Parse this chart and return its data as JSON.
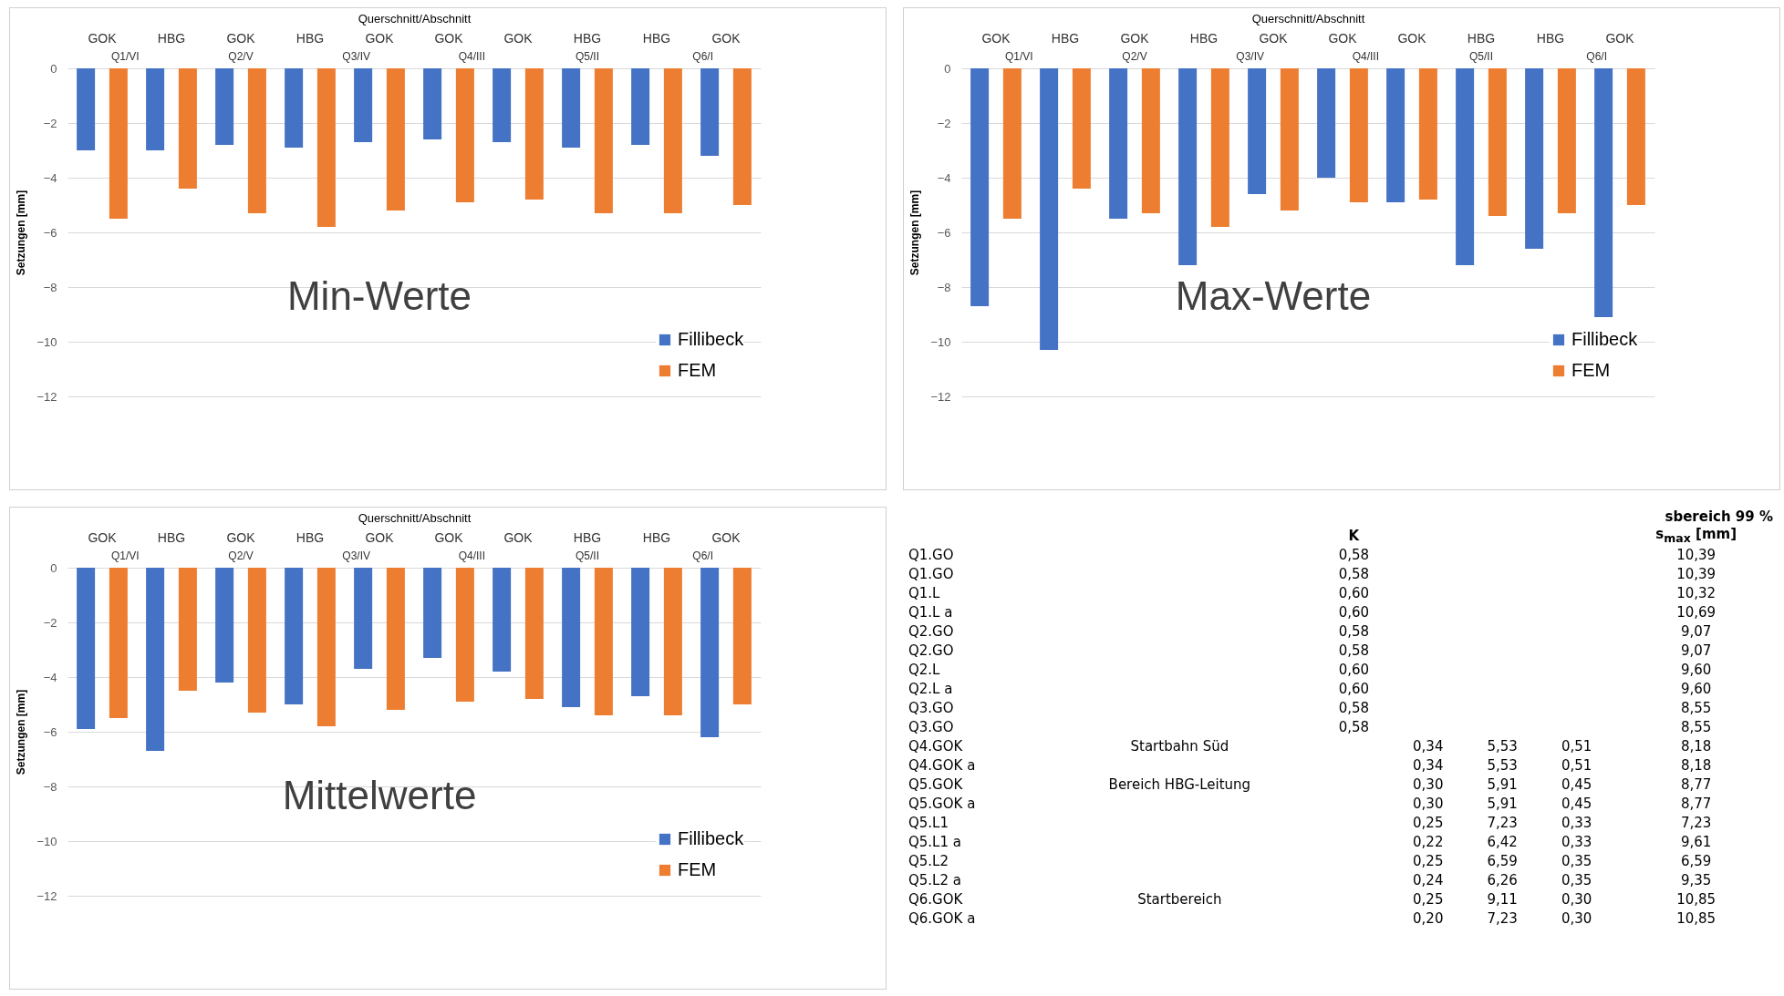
{
  "chart_data": [
    {
      "type": "bar",
      "title": "Min-Werte",
      "xlabel": "Querschnitt/Abschnitt",
      "ylabel": "Setzungen [mm]",
      "categories": [
        "GOK",
        "HBG",
        "GOK",
        "HBG",
        "GOK",
        "GOK",
        "GOK",
        "HBG",
        "HBG",
        "GOK"
      ],
      "annotations": [
        "Q1/VI",
        "Q2/V",
        "Q3/IV",
        "Q4/III",
        "Q5/II",
        "Q6/I"
      ],
      "series": [
        {
          "name": "Fillibeck",
          "color": "#4472c4",
          "values": [
            -3.0,
            -3.0,
            -2.8,
            -2.9,
            -2.7,
            -2.6,
            -2.7,
            -2.9,
            -2.8,
            -3.2
          ]
        },
        {
          "name": "FEM",
          "color": "#ed7d31",
          "values": [
            -5.5,
            -4.4,
            -5.3,
            -5.8,
            -5.2,
            -4.9,
            -4.8,
            -5.3,
            -5.3,
            -5.0
          ]
        }
      ],
      "ylim": [
        -12,
        0
      ],
      "yticks": [
        -12,
        -10,
        -8,
        -6,
        -4,
        -2,
        0
      ],
      "grid": "y",
      "legend": "bottom right"
    },
    {
      "type": "bar",
      "title": "Max-Werte",
      "xlabel": "Querschnitt/Abschnitt",
      "ylabel": "Setzungen [mm]",
      "categories": [
        "GOK",
        "HBG",
        "GOK",
        "HBG",
        "GOK",
        "GOK",
        "GOK",
        "HBG",
        "HBG",
        "GOK"
      ],
      "annotations": [
        "Q1/VI",
        "Q2/V",
        "Q3/IV",
        "Q4/III",
        "Q5/II",
        "Q6/I"
      ],
      "series": [
        {
          "name": "Fillibeck",
          "color": "#4472c4",
          "values": [
            -8.7,
            -10.3,
            -5.5,
            -7.2,
            -4.6,
            -4.0,
            -4.9,
            -7.2,
            -6.6,
            -9.1
          ]
        },
        {
          "name": "FEM",
          "color": "#ed7d31",
          "values": [
            -5.5,
            -4.4,
            -5.3,
            -5.8,
            -5.2,
            -4.9,
            -4.8,
            -5.4,
            -5.3,
            -5.0
          ]
        }
      ],
      "ylim": [
        -12,
        0
      ],
      "yticks": [
        -12,
        -10,
        -8,
        -6,
        -4,
        -2,
        0
      ],
      "grid": "y",
      "legend": "bottom right"
    },
    {
      "type": "bar",
      "title": "Mittelwerte",
      "xlabel": "Querschnitt/Abschnitt",
      "ylabel": "Setzungen [mm]",
      "categories": [
        "GOK",
        "HBG",
        "GOK",
        "HBG",
        "GOK",
        "GOK",
        "GOK",
        "HBG",
        "HBG",
        "GOK"
      ],
      "annotations": [
        "Q1/VI",
        "Q2/V",
        "Q3/IV",
        "Q4/III",
        "Q5/II",
        "Q6/I"
      ],
      "series": [
        {
          "name": "Fillibeck",
          "color": "#4472c4",
          "values": [
            -5.9,
            -6.7,
            -4.2,
            -5.0,
            -3.7,
            -3.3,
            -3.8,
            -5.1,
            -4.7,
            -6.2
          ]
        },
        {
          "name": "FEM",
          "color": "#ed7d31",
          "values": [
            -5.5,
            -4.5,
            -5.3,
            -5.8,
            -5.2,
            -4.9,
            -4.8,
            -5.4,
            -5.4,
            -5.0
          ]
        }
      ],
      "ylim": [
        -12,
        0
      ],
      "yticks": [
        -12,
        -10,
        -8,
        -6,
        -4,
        -2,
        0
      ],
      "grid": "y",
      "legend": "bottom right"
    },
    {
      "type": "other",
      "annotations": [
        "sbereich 99 %"
      ],
      "categories": [
        null,
        "K",
        null,
        null,
        null,
        "s$_{max}$ [mm]"
      ],
      "y_categories": [
        "Q1.GO",
        "Q1.GO",
        "Q1.L",
        "Q1.L a",
        "Q2.GO",
        "Q2.GO",
        "Q2.L",
        "Q2.L a",
        "Q3.GO",
        "Q3.GO",
        "Q4.GOK",
        "Q4.GOK a",
        "Q5.GOK",
        "Q5.GOK a",
        "Q5.L1",
        "Q5.L1 a",
        "Q5.L2",
        "Q5.L2 a",
        "Q6.GOK",
        "Q6.GOK a"
      ],
      "cell_labels": [
        [
          null,
          "0,58",
          null,
          null,
          null,
          "10,39"
        ],
        [
          null,
          "0,58",
          null,
          null,
          null,
          "10,39"
        ],
        [
          null,
          "0,60",
          null,
          null,
          null,
          "10,32"
        ],
        [
          null,
          "0,60",
          null,
          null,
          null,
          "10,69"
        ],
        [
          null,
          "0,58",
          null,
          null,
          null,
          "9,07"
        ],
        [
          null,
          "0,58",
          null,
          null,
          null,
          "9,07"
        ],
        [
          null,
          "0,60",
          null,
          null,
          null,
          "9,60"
        ],
        [
          null,
          "0,60",
          null,
          null,
          null,
          "9,60"
        ],
        [
          null,
          "0,58",
          null,
          null,
          null,
          "8,55"
        ],
        [
          null,
          "0,58",
          null,
          null,
          null,
          "8,55"
        ],
        [
          "Startbahn Süd",
          null,
          "0,34",
          "5,53",
          "0,51",
          "8,18"
        ],
        [
          null,
          null,
          "0,34",
          "5,53",
          "0,51",
          "8,18"
        ],
        [
          "Bereich HBG-Leitung",
          null,
          "0,30",
          "5,91",
          "0,45",
          "8,77"
        ],
        [
          null,
          null,
          "0,30",
          "5,91",
          "0,45",
          "8,77"
        ],
        [
          null,
          null,
          "0,25",
          "7,23",
          "0,33",
          "7,23"
        ],
        [
          null,
          null,
          "0,22",
          "6,42",
          "0,33",
          "9,61"
        ],
        [
          null,
          null,
          "0,25",
          "6,59",
          "0,35",
          "6,59"
        ],
        [
          null,
          null,
          "0,24",
          "6,26",
          "0,35",
          "9,35"
        ],
        [
          "Startbereich",
          null,
          "0,25",
          "9,11",
          "0,30",
          "10,85"
        ],
        [
          null,
          null,
          "0,20",
          "7,23",
          "0,30",
          "10,85"
        ]
      ]
    }
  ]
}
